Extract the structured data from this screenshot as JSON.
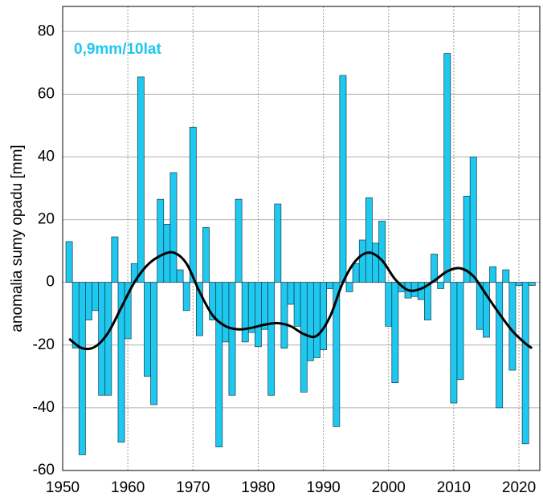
{
  "chart_data": {
    "type": "bar",
    "y_label": "anomalia sumy opadu [mm]",
    "annotation": "0,9mm/10lat",
    "annotation_color": "#1ec8ee",
    "color": "#1ec8ee",
    "edge_color": "#1a3a4a",
    "trend_color": "#000000",
    "grid": true,
    "xlim": [
      1950,
      2023.2
    ],
    "ylim": [
      -60,
      88
    ],
    "xticks": [
      1950,
      1960,
      1970,
      1980,
      1990,
      2000,
      2010,
      2020
    ],
    "yticks": [
      -60,
      -40,
      -20,
      0,
      20,
      40,
      60,
      80
    ],
    "x": [
      1951,
      1952,
      1953,
      1954,
      1955,
      1956,
      1957,
      1958,
      1959,
      1960,
      1961,
      1962,
      1963,
      1964,
      1965,
      1966,
      1967,
      1968,
      1969,
      1970,
      1971,
      1972,
      1973,
      1974,
      1975,
      1976,
      1977,
      1978,
      1979,
      1980,
      1981,
      1982,
      1983,
      1984,
      1985,
      1986,
      1987,
      1988,
      1989,
      1990,
      1991,
      1992,
      1993,
      1994,
      1995,
      1996,
      1997,
      1998,
      1999,
      2000,
      2001,
      2002,
      2003,
      2004,
      2005,
      2006,
      2007,
      2008,
      2009,
      2010,
      2011,
      2012,
      2013,
      2014,
      2015,
      2016,
      2017,
      2018,
      2019,
      2020,
      2021,
      2022
    ],
    "values": [
      13,
      -21,
      -55,
      -12,
      -9,
      -36,
      -36,
      14.5,
      -51,
      -18,
      6,
      65.5,
      -30,
      -39,
      26.5,
      18.5,
      35,
      4,
      -9,
      49.5,
      -17,
      17.5,
      -12,
      -52.5,
      -19,
      -36,
      26.5,
      -19,
      -16,
      -20.5,
      -15,
      -36,
      25,
      -21,
      -7,
      -14,
      -35,
      -25,
      -24,
      -21.5,
      -2,
      -46,
      66,
      -3,
      6,
      13.5,
      27,
      12.5,
      19.5,
      -14,
      -32,
      -3,
      -5,
      -4.5,
      -5.5,
      -12,
      9,
      -2,
      73,
      -38.5,
      -31,
      27.5,
      40,
      -15,
      -17.5,
      5,
      -40,
      4,
      -28,
      -1,
      -51.5,
      -1
    ],
    "trend": {
      "x": [
        1951,
        1953,
        1955,
        1957,
        1959,
        1961,
        1963,
        1965,
        1967,
        1969,
        1971,
        1973,
        1975,
        1977,
        1979,
        1981,
        1983,
        1985,
        1987,
        1989,
        1991,
        1993,
        1995,
        1997,
        1999,
        2001,
        2003,
        2005,
        2007,
        2009,
        2011,
        2013,
        2015,
        2017,
        2019,
        2021,
        2022
      ],
      "values": [
        -18,
        -21,
        -20.5,
        -16,
        -8,
        0,
        5.5,
        8.5,
        9.5,
        6,
        -3,
        -10.5,
        -14,
        -15,
        -14.5,
        -13.5,
        -13,
        -14,
        -16.5,
        -17,
        -11,
        0,
        7,
        9.5,
        7,
        1,
        -2.5,
        -2,
        0.5,
        3.5,
        4.5,
        2,
        -4,
        -10,
        -15.5,
        -19.5,
        -21
      ]
    }
  }
}
